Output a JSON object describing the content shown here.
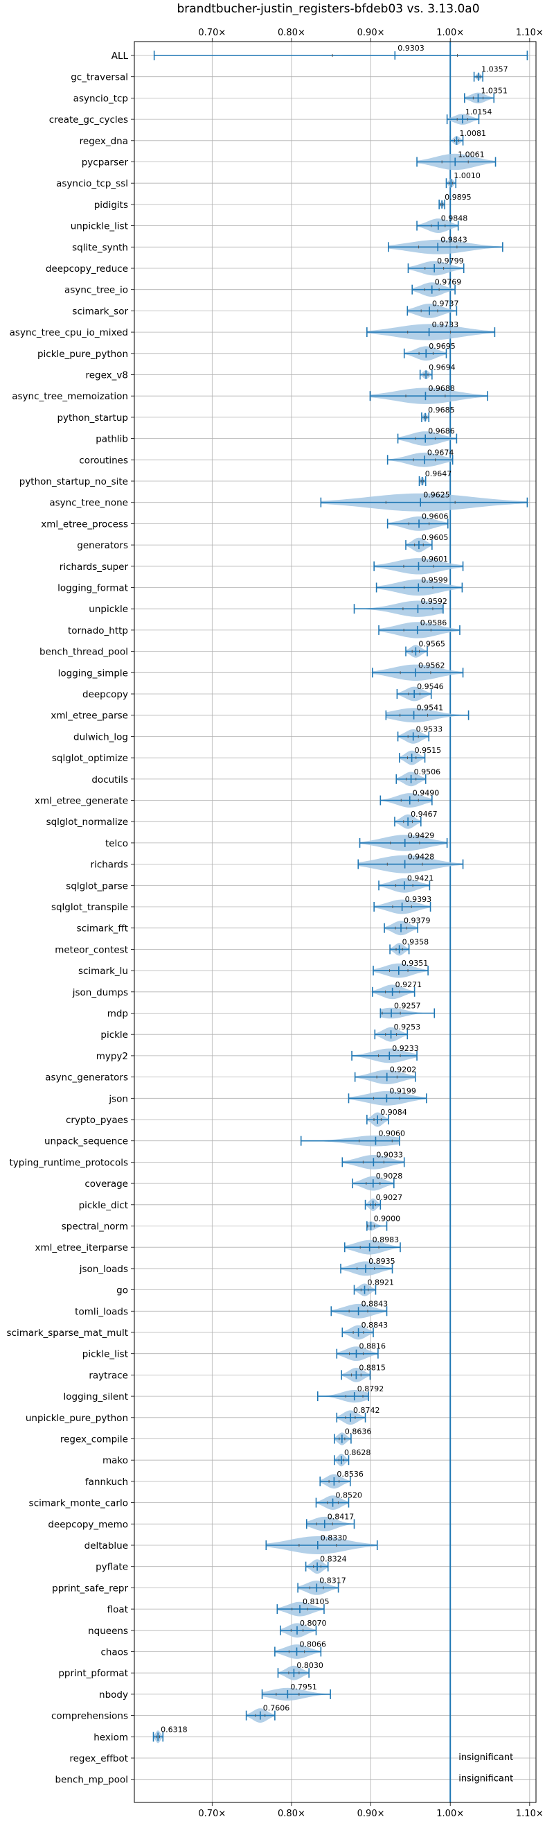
{
  "chart_data": {
    "type": "violin",
    "title": "brandtbucher-justin_registers-bfdeb03 vs. 3.13.0a0",
    "x_ticks": [
      0.7,
      0.8,
      0.9,
      1.0,
      1.1
    ],
    "x_tick_labels": [
      "0.70×",
      "0.80×",
      "0.90×",
      "1.00×",
      "1.10×"
    ],
    "xlim": [
      0.602,
      1.108
    ],
    "reference_line": 1.0,
    "grid": true,
    "colors": {
      "accent": "#1f77b4",
      "violin": "#a6c8e4"
    },
    "benchmarks": [
      {
        "name": "ALL",
        "label": "0.9303",
        "median": 0.9303,
        "min": 0.627,
        "max": 1.097,
        "width": 0.06
      },
      {
        "name": "gc_traversal",
        "label": "1.0357",
        "median": 1.0357,
        "min": 1.03,
        "max": 1.041,
        "width": 0.4
      },
      {
        "name": "asyncio_tcp",
        "label": "1.0351",
        "median": 1.0351,
        "min": 1.018,
        "max": 1.055,
        "width": 0.6
      },
      {
        "name": "create_gc_cycles",
        "label": "1.0154",
        "median": 1.0154,
        "min": 0.996,
        "max": 1.036,
        "width": 0.6
      },
      {
        "name": "regex_dna",
        "label": "1.0081",
        "median": 1.0081,
        "min": 1.0,
        "max": 1.016,
        "width": 0.5
      },
      {
        "name": "pycparser",
        "label": "1.0061",
        "median": 1.0061,
        "min": 0.958,
        "max": 1.057,
        "width": 0.9
      },
      {
        "name": "asyncio_tcp_ssl",
        "label": "1.0010",
        "median": 1.001,
        "min": 0.995,
        "max": 1.007,
        "width": 0.5
      },
      {
        "name": "pidigits",
        "label": "0.9895",
        "median": 0.9895,
        "min": 0.986,
        "max": 0.993,
        "width": 0.4
      },
      {
        "name": "unpickle_list",
        "label": "0.9848",
        "median": 0.9848,
        "min": 0.958,
        "max": 1.01,
        "width": 0.8
      },
      {
        "name": "sqlite_synth",
        "label": "0.9843",
        "median": 0.9843,
        "min": 0.922,
        "max": 1.066,
        "width": 0.8
      },
      {
        "name": "deepcopy_reduce",
        "label": "0.9799",
        "median": 0.9799,
        "min": 0.947,
        "max": 1.017,
        "width": 0.8
      },
      {
        "name": "async_tree_io",
        "label": "0.9769",
        "median": 0.9769,
        "min": 0.952,
        "max": 1.006,
        "width": 0.8
      },
      {
        "name": "scimark_sor",
        "label": "0.9737",
        "median": 0.9737,
        "min": 0.946,
        "max": 1.008,
        "width": 0.8
      },
      {
        "name": "async_tree_cpu_io_mixed",
        "label": "0.9733",
        "median": 0.9733,
        "min": 0.895,
        "max": 1.056,
        "width": 0.9
      },
      {
        "name": "pickle_pure_python",
        "label": "0.9695",
        "median": 0.9695,
        "min": 0.942,
        "max": 0.995,
        "width": 0.8
      },
      {
        "name": "regex_v8",
        "label": "0.9694",
        "median": 0.9694,
        "min": 0.962,
        "max": 0.977,
        "width": 0.5
      },
      {
        "name": "async_tree_memoization",
        "label": "0.9688",
        "median": 0.9688,
        "min": 0.899,
        "max": 1.047,
        "width": 0.9
      },
      {
        "name": "python_startup",
        "label": "0.9685",
        "median": 0.9685,
        "min": 0.964,
        "max": 0.973,
        "width": 0.5
      },
      {
        "name": "pathlib",
        "label": "0.9686",
        "median": 0.9686,
        "min": 0.934,
        "max": 1.008,
        "width": 0.8
      },
      {
        "name": "coroutines",
        "label": "0.9674",
        "median": 0.9674,
        "min": 0.921,
        "max": 1.003,
        "width": 0.8
      },
      {
        "name": "python_startup_no_site",
        "label": "0.9647",
        "median": 0.9647,
        "min": 0.961,
        "max": 0.969,
        "width": 0.5
      },
      {
        "name": "async_tree_none",
        "label": "0.9625",
        "median": 0.9625,
        "min": 0.837,
        "max": 1.097,
        "width": 1.0
      },
      {
        "name": "xml_etree_process",
        "label": "0.9606",
        "median": 0.9606,
        "min": 0.921,
        "max": 0.997,
        "width": 0.8
      },
      {
        "name": "generators",
        "label": "0.9605",
        "median": 0.9605,
        "min": 0.944,
        "max": 0.977,
        "width": 0.8
      },
      {
        "name": "richards_super",
        "label": "0.9601",
        "median": 0.9601,
        "min": 0.904,
        "max": 1.016,
        "width": 0.9
      },
      {
        "name": "logging_format",
        "label": "0.9599",
        "median": 0.9599,
        "min": 0.907,
        "max": 1.015,
        "width": 0.9
      },
      {
        "name": "unpickle",
        "label": "0.9592",
        "median": 0.9592,
        "min": 0.879,
        "max": 0.991,
        "width": 0.9
      },
      {
        "name": "tornado_http",
        "label": "0.9586",
        "median": 0.9586,
        "min": 0.91,
        "max": 1.012,
        "width": 0.9
      },
      {
        "name": "bench_thread_pool",
        "label": "0.9565",
        "median": 0.9565,
        "min": 0.944,
        "max": 0.971,
        "width": 0.7
      },
      {
        "name": "logging_simple",
        "label": "0.9562",
        "median": 0.9562,
        "min": 0.902,
        "max": 1.016,
        "width": 0.9
      },
      {
        "name": "deepcopy",
        "label": "0.9546",
        "median": 0.9546,
        "min": 0.933,
        "max": 0.976,
        "width": 0.8
      },
      {
        "name": "xml_etree_parse",
        "label": "0.9541",
        "median": 0.9541,
        "min": 0.919,
        "max": 1.023,
        "width": 0.8
      },
      {
        "name": "dulwich_log",
        "label": "0.9533",
        "median": 0.9533,
        "min": 0.934,
        "max": 0.973,
        "width": 0.8
      },
      {
        "name": "sqlglot_optimize",
        "label": "0.9515",
        "median": 0.9515,
        "min": 0.936,
        "max": 0.968,
        "width": 0.8
      },
      {
        "name": "docutils",
        "label": "0.9506",
        "median": 0.9506,
        "min": 0.932,
        "max": 0.969,
        "width": 0.8
      },
      {
        "name": "xml_etree_generate",
        "label": "0.9490",
        "median": 0.949,
        "min": 0.912,
        "max": 0.977,
        "width": 0.8
      },
      {
        "name": "sqlglot_normalize",
        "label": "0.9467",
        "median": 0.9467,
        "min": 0.93,
        "max": 0.963,
        "width": 0.8
      },
      {
        "name": "telco",
        "label": "0.9429",
        "median": 0.9429,
        "min": 0.886,
        "max": 0.996,
        "width": 0.9
      },
      {
        "name": "richards",
        "label": "0.9428",
        "median": 0.9428,
        "min": 0.884,
        "max": 1.016,
        "width": 1.0
      },
      {
        "name": "sqlglot_parse",
        "label": "0.9421",
        "median": 0.9421,
        "min": 0.91,
        "max": 0.974,
        "width": 0.8
      },
      {
        "name": "sqlglot_transpile",
        "label": "0.9393",
        "median": 0.9393,
        "min": 0.904,
        "max": 0.975,
        "width": 0.8
      },
      {
        "name": "scimark_fft",
        "label": "0.9379",
        "median": 0.9379,
        "min": 0.917,
        "max": 0.959,
        "width": 0.8
      },
      {
        "name": "meteor_contest",
        "label": "0.9358",
        "median": 0.9358,
        "min": 0.924,
        "max": 0.948,
        "width": 0.7
      },
      {
        "name": "scimark_lu",
        "label": "0.9351",
        "median": 0.9351,
        "min": 0.903,
        "max": 0.972,
        "width": 0.8
      },
      {
        "name": "json_dumps",
        "label": "0.9271",
        "median": 0.9271,
        "min": 0.902,
        "max": 0.955,
        "width": 0.8
      },
      {
        "name": "mdp",
        "label": "0.9257",
        "median": 0.9257,
        "min": 0.912,
        "max": 0.98,
        "width": 0.6
      },
      {
        "name": "pickle",
        "label": "0.9253",
        "median": 0.9253,
        "min": 0.905,
        "max": 0.946,
        "width": 0.8
      },
      {
        "name": "mypy2",
        "label": "0.9233",
        "median": 0.9233,
        "min": 0.876,
        "max": 0.958,
        "width": 0.8
      },
      {
        "name": "async_generators",
        "label": "0.9202",
        "median": 0.9202,
        "min": 0.88,
        "max": 0.956,
        "width": 0.8
      },
      {
        "name": "json",
        "label": "0.9199",
        "median": 0.9199,
        "min": 0.872,
        "max": 0.97,
        "width": 0.8
      },
      {
        "name": "crypto_pyaes",
        "label": "0.9084",
        "median": 0.9084,
        "min": 0.895,
        "max": 0.922,
        "width": 0.8
      },
      {
        "name": "unpack_sequence",
        "label": "0.9060",
        "median": 0.906,
        "min": 0.812,
        "max": 0.936,
        "width": 0.6
      },
      {
        "name": "typing_runtime_protocols",
        "label": "0.9033",
        "median": 0.9033,
        "min": 0.864,
        "max": 0.942,
        "width": 0.8
      },
      {
        "name": "coverage",
        "label": "0.9028",
        "median": 0.9028,
        "min": 0.877,
        "max": 0.929,
        "width": 0.8
      },
      {
        "name": "pickle_dict",
        "label": "0.9027",
        "median": 0.9027,
        "min": 0.893,
        "max": 0.912,
        "width": 0.7
      },
      {
        "name": "spectral_norm",
        "label": "0.9000",
        "median": 0.9,
        "min": 0.895,
        "max": 0.92,
        "width": 0.5
      },
      {
        "name": "xml_etree_iterparse",
        "label": "0.8983",
        "median": 0.8983,
        "min": 0.867,
        "max": 0.937,
        "width": 0.8
      },
      {
        "name": "json_loads",
        "label": "0.8935",
        "median": 0.8935,
        "min": 0.862,
        "max": 0.927,
        "width": 0.8
      },
      {
        "name": "go",
        "label": "0.8921",
        "median": 0.8921,
        "min": 0.879,
        "max": 0.906,
        "width": 0.7
      },
      {
        "name": "tomli_loads",
        "label": "0.8843",
        "median": 0.8843,
        "min": 0.85,
        "max": 0.92,
        "width": 0.8
      },
      {
        "name": "scimark_sparse_mat_mult",
        "label": "0.8843",
        "median": 0.8843,
        "min": 0.864,
        "max": 0.903,
        "width": 0.8
      },
      {
        "name": "pickle_list",
        "label": "0.8816",
        "median": 0.8816,
        "min": 0.857,
        "max": 0.909,
        "width": 0.8
      },
      {
        "name": "raytrace",
        "label": "0.8815",
        "median": 0.8815,
        "min": 0.863,
        "max": 0.899,
        "width": 0.8
      },
      {
        "name": "logging_silent",
        "label": "0.8792",
        "median": 0.8792,
        "min": 0.833,
        "max": 0.897,
        "width": 0.7
      },
      {
        "name": "unpickle_pure_python",
        "label": "0.8742",
        "median": 0.8742,
        "min": 0.857,
        "max": 0.893,
        "width": 0.8
      },
      {
        "name": "regex_compile",
        "label": "0.8636",
        "median": 0.8636,
        "min": 0.854,
        "max": 0.875,
        "width": 0.7
      },
      {
        "name": "mako",
        "label": "0.8628",
        "median": 0.8628,
        "min": 0.854,
        "max": 0.872,
        "width": 0.7
      },
      {
        "name": "fannkuch",
        "label": "0.8536",
        "median": 0.8536,
        "min": 0.836,
        "max": 0.874,
        "width": 0.8
      },
      {
        "name": "scimark_monte_carlo",
        "label": "0.8520",
        "median": 0.852,
        "min": 0.831,
        "max": 0.872,
        "width": 0.8
      },
      {
        "name": "deepcopy_memo",
        "label": "0.8417",
        "median": 0.8417,
        "min": 0.819,
        "max": 0.879,
        "width": 0.8
      },
      {
        "name": "deltablue",
        "label": "0.8330",
        "median": 0.833,
        "min": 0.768,
        "max": 0.908,
        "width": 1.0
      },
      {
        "name": "pyflate",
        "label": "0.8324",
        "median": 0.8324,
        "min": 0.818,
        "max": 0.846,
        "width": 0.8
      },
      {
        "name": "pprint_safe_repr",
        "label": "0.8317",
        "median": 0.8317,
        "min": 0.808,
        "max": 0.859,
        "width": 0.8
      },
      {
        "name": "float",
        "label": "0.8105",
        "median": 0.8105,
        "min": 0.782,
        "max": 0.841,
        "width": 0.8
      },
      {
        "name": "nqueens",
        "label": "0.8070",
        "median": 0.807,
        "min": 0.786,
        "max": 0.831,
        "width": 0.8
      },
      {
        "name": "chaos",
        "label": "0.8066",
        "median": 0.8066,
        "min": 0.779,
        "max": 0.837,
        "width": 0.8
      },
      {
        "name": "pprint_pformat",
        "label": "0.8030",
        "median": 0.803,
        "min": 0.783,
        "max": 0.822,
        "width": 0.8
      },
      {
        "name": "nbody",
        "label": "0.7951",
        "median": 0.7951,
        "min": 0.763,
        "max": 0.849,
        "width": 0.7
      },
      {
        "name": "comprehensions",
        "label": "0.7606",
        "median": 0.7606,
        "min": 0.743,
        "max": 0.779,
        "width": 0.8
      },
      {
        "name": "hexiom",
        "label": "0.6318",
        "median": 0.6318,
        "min": 0.626,
        "max": 0.638,
        "width": 0.7
      },
      {
        "name": "regex_effbot",
        "label": "insignificant",
        "median": null,
        "min": null,
        "max": null,
        "width": 0
      },
      {
        "name": "bench_mp_pool",
        "label": "insignificant",
        "median": null,
        "min": null,
        "max": null,
        "width": 0
      }
    ]
  }
}
